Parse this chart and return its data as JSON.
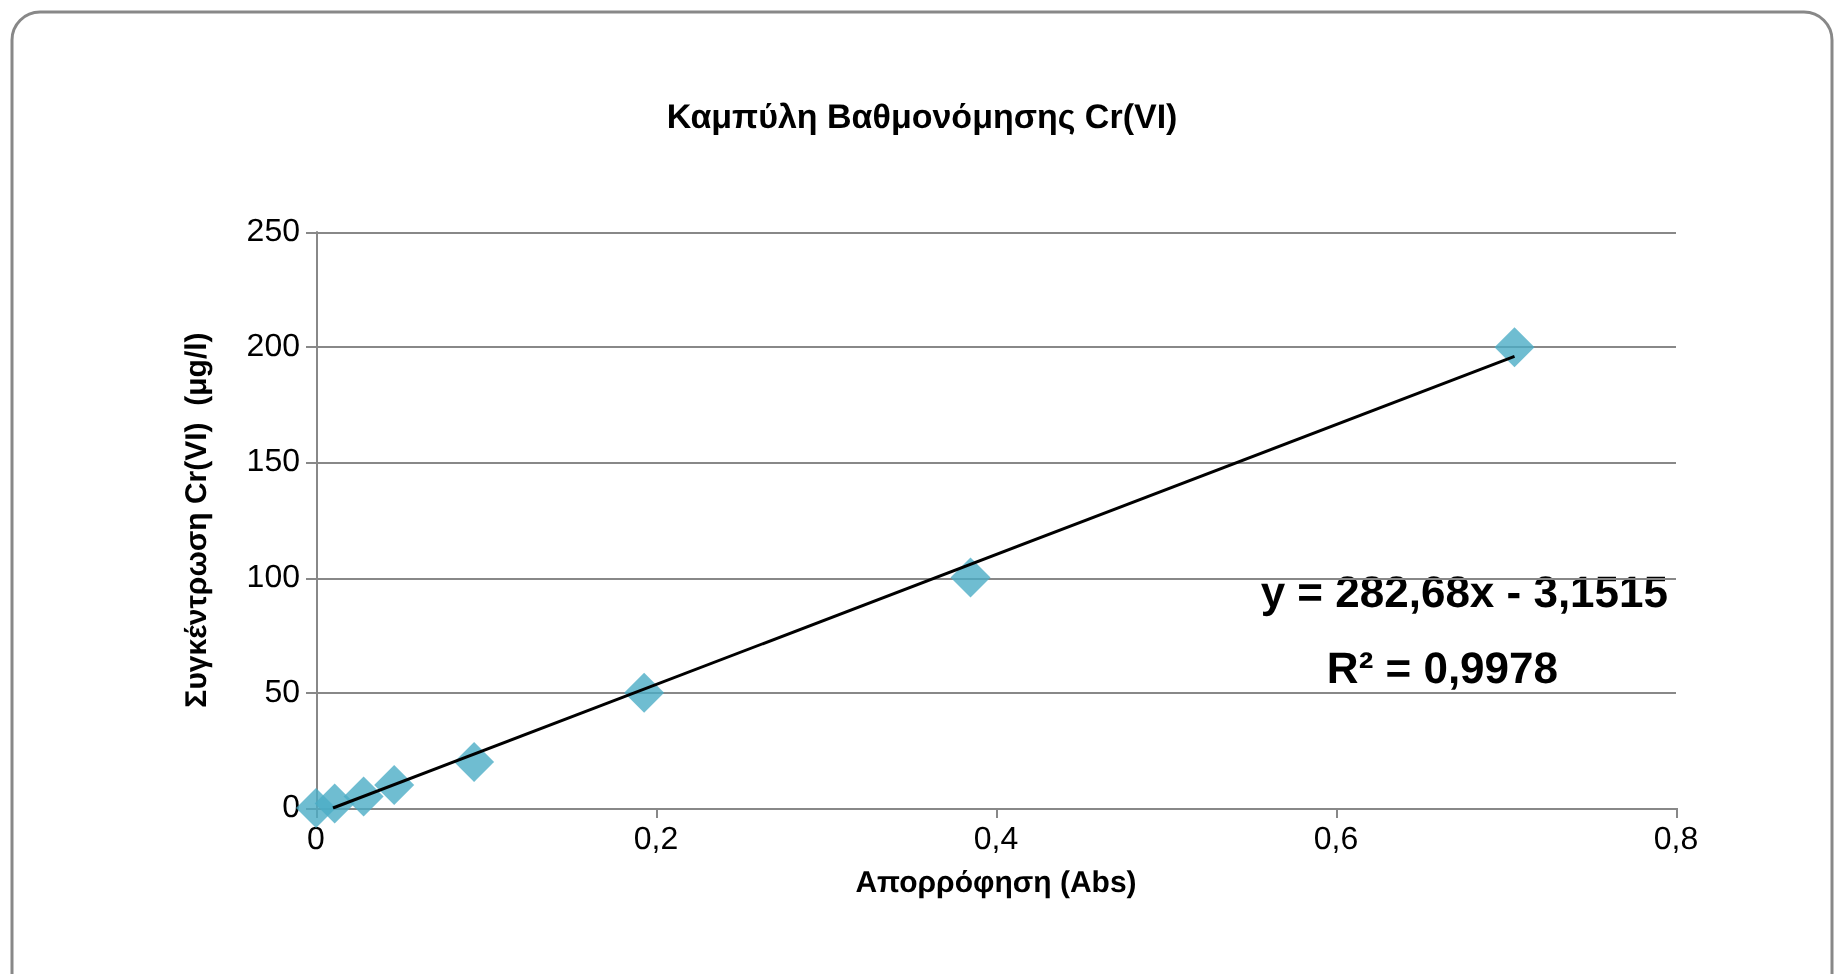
{
  "chart_data": {
    "type": "scatter",
    "title": "Καμπύλη Βαθμονόμησης Cr(VI)",
    "xlabel": "Απορρόφηση (Abs)",
    "ylabel": "Συγκέντρωση Cr(VI)  (μg/l)",
    "series": [
      {
        "color": "#4bacc6",
        "marker": "diamond",
        "x": [
          0,
          0.011,
          0.028,
          0.046,
          0.093,
          0.193,
          0.385,
          0.705
        ],
        "values": [
          0,
          2,
          5,
          10,
          20,
          50,
          100,
          200
        ]
      },
      {
        "type": "line",
        "color": "#000000",
        "marker": "none",
        "line_style": "solid",
        "x": [
          0.01,
          0.705
        ],
        "values": [
          0,
          196
        ]
      }
    ],
    "xlim": [
      0,
      0.8
    ],
    "xticks": [
      {
        "value": 0,
        "label": "0"
      },
      {
        "value": 0.2,
        "label": "0,2"
      },
      {
        "value": 0.4,
        "label": "0,4"
      },
      {
        "value": 0.6,
        "label": "0,6"
      },
      {
        "value": 0.8,
        "label": "0,8"
      }
    ],
    "ylim": [
      0,
      250
    ],
    "yticks": [
      0,
      50,
      100,
      150,
      200,
      250
    ],
    "grid": "y",
    "annotations": [
      "y = 282,68x - 3,1515",
      "R² = 0,9978"
    ]
  }
}
